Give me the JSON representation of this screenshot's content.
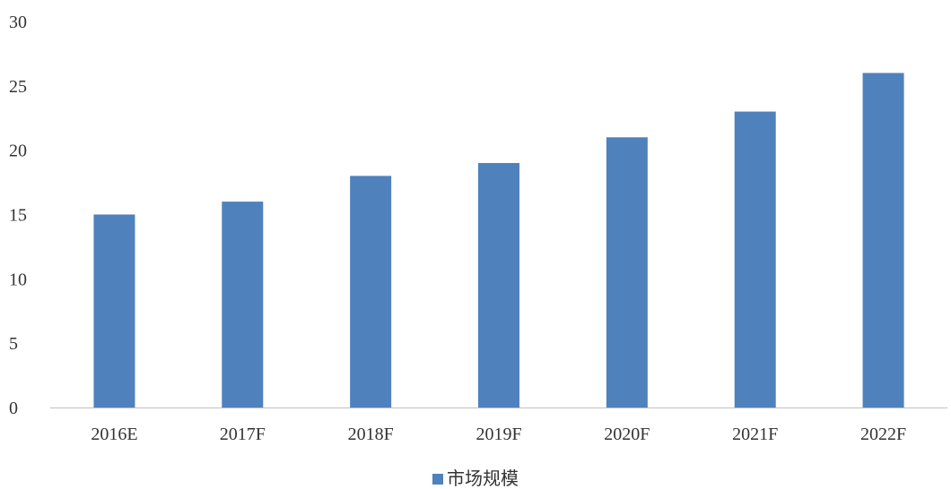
{
  "chart_data": {
    "type": "bar",
    "categories": [
      "2016E",
      "2017F",
      "2018F",
      "2019F",
      "2020F",
      "2021F",
      "2022F"
    ],
    "series": [
      {
        "name": "市场规模",
        "values": [
          15,
          16,
          18,
          19,
          21,
          23,
          26
        ],
        "color": "#4F81BD"
      }
    ],
    "ylim": [
      0,
      30
    ],
    "yticks": [
      0,
      5,
      10,
      15,
      20,
      25,
      30
    ],
    "grid": false,
    "legend_position": "bottom"
  }
}
